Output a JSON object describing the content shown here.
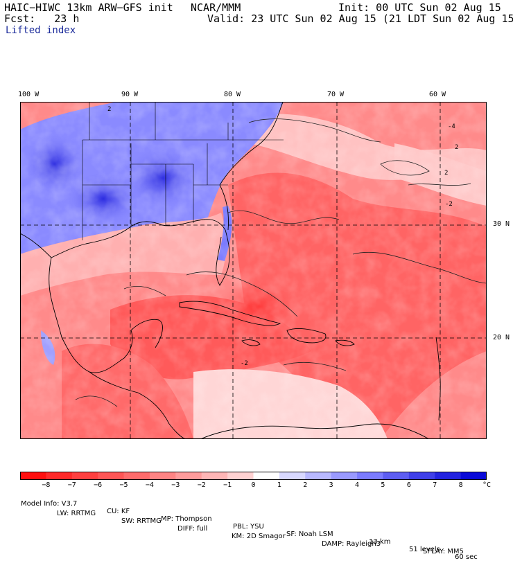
{
  "header": {
    "model": "HAIC−HIWC 13km ARW−GFS init",
    "org": "NCAR/MMM",
    "init": "Init: 00 UTC Sun 02 Aug 15",
    "fcst": "Fcst:   23 h",
    "valid": "Valid: 23 UTC Sun 02 Aug 15 (21 LDT Sun 02 Aug 15)",
    "field": "Lifted index"
  },
  "lon_labels": [
    "100 W",
    "90 W",
    "80 W",
    "70 W",
    "60 W"
  ],
  "lat_labels": [
    "30 N",
    "20 N"
  ],
  "contour_labels": [
    "2",
    "-2",
    "-4"
  ],
  "colorbar": {
    "labels": [
      "−8",
      "−7",
      "−6",
      "−5",
      "−4",
      "−3",
      "−2",
      "−1",
      "0",
      "1",
      "2",
      "3",
      "4",
      "5",
      "6",
      "7",
      "8"
    ],
    "unit": "°C",
    "colors": [
      "#ff1010",
      "#ff2a2a",
      "#ff4040",
      "#ff5656",
      "#ff6c6c",
      "#ff8484",
      "#ff9c9c",
      "#ffb6b6",
      "#ffd2d2",
      "#ffffff",
      "#d8d8ff",
      "#b8b8ff",
      "#9a9aff",
      "#7c7cff",
      "#5e5ef2",
      "#4040e8",
      "#2424e0",
      "#0a0ad8"
    ]
  },
  "footer": {
    "line1": [
      "Model Info: V3.7",
      "CU: KF",
      "MP: Thompson",
      "PBL: YSU",
      "SF: Noah LSM",
      "13 km",
      "51 levels",
      "60 sec"
    ],
    "line2": [
      "LW: RRTMG",
      "SW: RRTMG",
      "DIFF: full",
      "KM: 2D Smagor",
      "DAMP: Rayleigh3",
      "SFLAY: MM5"
    ]
  }
}
